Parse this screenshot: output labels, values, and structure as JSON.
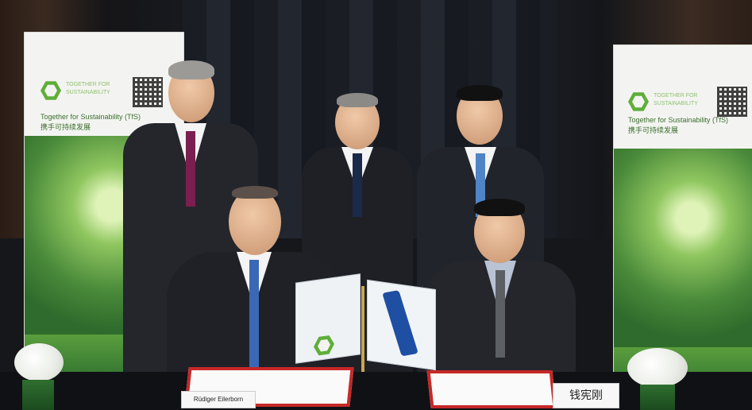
{
  "banner_left": {
    "brand_line1": "TOGETHER FOR",
    "brand_line2": "SUSTAINABILITY",
    "tagline_en": "Together for Sustainability (TfS)",
    "tagline_cn": "携手可持续发展"
  },
  "banner_right": {
    "brand_line1": "TOGETHER FOR",
    "brand_line2": "SUSTAINABILITY",
    "tagline_en": "Together for Sustainability (TfS)",
    "tagline_cn": "携手可持续发展"
  },
  "nameplate_left": "Rüdiger Eilerborn",
  "nameplate_right": "钱宪刚",
  "colors": {
    "brand_green": "#5fae3a",
    "folder_red": "#c62828",
    "flag_blue": "#1f4fa3"
  }
}
